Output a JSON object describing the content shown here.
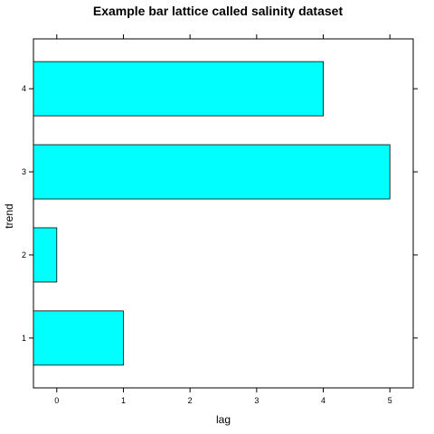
{
  "chart_data": {
    "type": "bar",
    "orientation": "horizontal",
    "title": "Example bar lattice called salinity dataset",
    "xlabel": "lag",
    "ylabel": "trend",
    "categories": [
      "1",
      "2",
      "3",
      "4"
    ],
    "values": [
      1,
      0,
      5,
      4
    ],
    "xlim": [
      -0.35,
      5.35
    ],
    "xticks": [
      "0",
      "1",
      "2",
      "3",
      "4",
      "5"
    ],
    "bar_color": "#00ffff",
    "grid": false,
    "legend": "none"
  }
}
